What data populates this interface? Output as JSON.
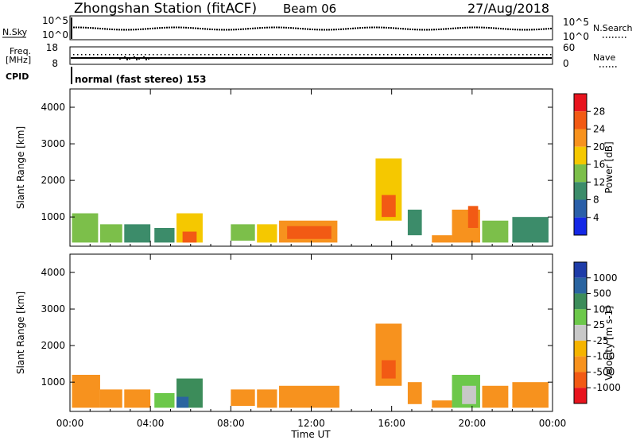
{
  "header": {
    "station": "Zhongshan Station (fitACF)",
    "beam": "Beam 06",
    "date": "27/Aug/2018"
  },
  "noise_panel": {
    "left_label": "N.Sky",
    "left_ticks": [
      "10^5",
      "10^0"
    ],
    "right_ticks": [
      "10^5",
      "10^0"
    ],
    "right_label": "N.Search"
  },
  "freq_panel": {
    "left_label_1": "Freq.",
    "left_label_2": "[MHz]",
    "left_ticks": [
      "18",
      "8"
    ],
    "right_ticks": [
      "60",
      "0"
    ],
    "right_label": "Nave"
  },
  "cpid": {
    "label": "CPID",
    "text": "normal (fast stereo) 153"
  },
  "power_colorbar": {
    "title": "Power [dB]",
    "ticks": [
      "28",
      "24",
      "20",
      "16",
      "12",
      "8",
      "4"
    ],
    "colors": [
      "#e8141e",
      "#f25a14",
      "#f7921e",
      "#f5c800",
      "#7cbf4a",
      "#3c8c6a",
      "#2a5fa8",
      "#1428e6"
    ]
  },
  "velocity_colorbar": {
    "title": "Velocity [m s-1]",
    "ticks": [
      "1000",
      "500",
      "100",
      "25",
      "-25",
      "-100",
      "-500",
      "-1000"
    ],
    "colors": [
      "#1e3ca8",
      "#2a64a0",
      "#3c8c5a",
      "#6cc84a",
      "#c8c8c8",
      "#f5b400",
      "#f7921e",
      "#f25a14",
      "#e8141e"
    ]
  },
  "chart_data": [
    {
      "type": "heatmap",
      "title": "",
      "xlabel": "",
      "ylabel": "Slant Range [km]",
      "x_ticks": [
        "00:00",
        "04:00",
        "08:00",
        "12:00",
        "16:00",
        "20:00",
        "00:00"
      ],
      "y_ticks": [
        "1000",
        "2000",
        "3000",
        "4000"
      ],
      "ylim": [
        200,
        4500
      ],
      "value_name": "Power [dB]",
      "blocks": [
        {
          "t0": 0.1,
          "t1": 1.4,
          "r0": 300,
          "r1": 1100,
          "value": 14
        },
        {
          "t0": 1.5,
          "t1": 2.6,
          "r0": 300,
          "r1": 800,
          "value": 12
        },
        {
          "t0": 2.7,
          "t1": 4.0,
          "r0": 300,
          "r1": 800,
          "value": 9
        },
        {
          "t0": 4.2,
          "t1": 5.2,
          "r0": 300,
          "r1": 700,
          "value": 8
        },
        {
          "t0": 5.3,
          "t1": 6.6,
          "r0": 300,
          "r1": 1100,
          "value": 18
        },
        {
          "t0": 5.6,
          "t1": 6.3,
          "r0": 300,
          "r1": 600,
          "value": 26
        },
        {
          "t0": 8.0,
          "t1": 9.2,
          "r0": 350,
          "r1": 800,
          "value": 12
        },
        {
          "t0": 9.3,
          "t1": 10.3,
          "r0": 300,
          "r1": 800,
          "value": 18
        },
        {
          "t0": 10.4,
          "t1": 13.3,
          "r0": 300,
          "r1": 900,
          "value": 20
        },
        {
          "t0": 10.8,
          "t1": 13.0,
          "r0": 400,
          "r1": 750,
          "value": 27
        },
        {
          "t0": 15.2,
          "t1": 16.5,
          "r0": 900,
          "r1": 2600,
          "value": 16
        },
        {
          "t0": 15.5,
          "t1": 16.2,
          "r0": 1000,
          "r1": 1600,
          "value": 26
        },
        {
          "t0": 16.8,
          "t1": 17.5,
          "r0": 500,
          "r1": 1200,
          "value": 10
        },
        {
          "t0": 18.0,
          "t1": 19.0,
          "r0": 300,
          "r1": 500,
          "value": 22
        },
        {
          "t0": 19.0,
          "t1": 20.4,
          "r0": 300,
          "r1": 1200,
          "value": 22
        },
        {
          "t0": 19.8,
          "t1": 20.3,
          "r0": 700,
          "r1": 1300,
          "value": 27
        },
        {
          "t0": 20.5,
          "t1": 21.8,
          "r0": 300,
          "r1": 900,
          "value": 12
        },
        {
          "t0": 22.0,
          "t1": 23.8,
          "r0": 300,
          "r1": 1000,
          "value": 10
        }
      ]
    },
    {
      "type": "heatmap",
      "title": "",
      "xlabel": "Time UT",
      "ylabel": "Slant Range [km]",
      "x_ticks": [
        "00:00",
        "04:00",
        "08:00",
        "12:00",
        "16:00",
        "20:00",
        "00:00"
      ],
      "y_ticks": [
        "1000",
        "2000",
        "3000",
        "4000"
      ],
      "ylim": [
        200,
        4500
      ],
      "value_name": "Velocity [m s-1]",
      "blocks": [
        {
          "t0": 0.1,
          "t1": 1.5,
          "r0": 300,
          "r1": 1200,
          "value": -200
        },
        {
          "t0": 1.5,
          "t1": 2.6,
          "r0": 300,
          "r1": 800,
          "value": -150
        },
        {
          "t0": 2.7,
          "t1": 4.0,
          "r0": 300,
          "r1": 800,
          "value": -200
        },
        {
          "t0": 4.2,
          "t1": 5.2,
          "r0": 300,
          "r1": 700,
          "value": 80
        },
        {
          "t0": 5.3,
          "t1": 6.6,
          "r0": 300,
          "r1": 1100,
          "value": 300
        },
        {
          "t0": 5.3,
          "t1": 5.9,
          "r0": 300,
          "r1": 600,
          "value": 700
        },
        {
          "t0": 8.0,
          "t1": 9.2,
          "r0": 350,
          "r1": 800,
          "value": -200
        },
        {
          "t0": 9.3,
          "t1": 10.3,
          "r0": 300,
          "r1": 800,
          "value": -200
        },
        {
          "t0": 10.4,
          "t1": 13.4,
          "r0": 300,
          "r1": 900,
          "value": -200
        },
        {
          "t0": 15.2,
          "t1": 16.5,
          "r0": 900,
          "r1": 2600,
          "value": -400
        },
        {
          "t0": 15.5,
          "t1": 16.2,
          "r0": 1100,
          "r1": 1600,
          "value": -800
        },
        {
          "t0": 16.8,
          "t1": 17.5,
          "r0": 400,
          "r1": 1000,
          "value": -150
        },
        {
          "t0": 18.0,
          "t1": 19.0,
          "r0": 300,
          "r1": 500,
          "value": -150
        },
        {
          "t0": 19.0,
          "t1": 20.4,
          "r0": 300,
          "r1": 1200,
          "value": 60
        },
        {
          "t0": 19.5,
          "t1": 20.2,
          "r0": 400,
          "r1": 900,
          "value": 20
        },
        {
          "t0": 20.5,
          "t1": 21.8,
          "r0": 300,
          "r1": 900,
          "value": -200
        },
        {
          "t0": 22.0,
          "t1": 23.8,
          "r0": 300,
          "r1": 1000,
          "value": -150
        }
      ]
    }
  ]
}
